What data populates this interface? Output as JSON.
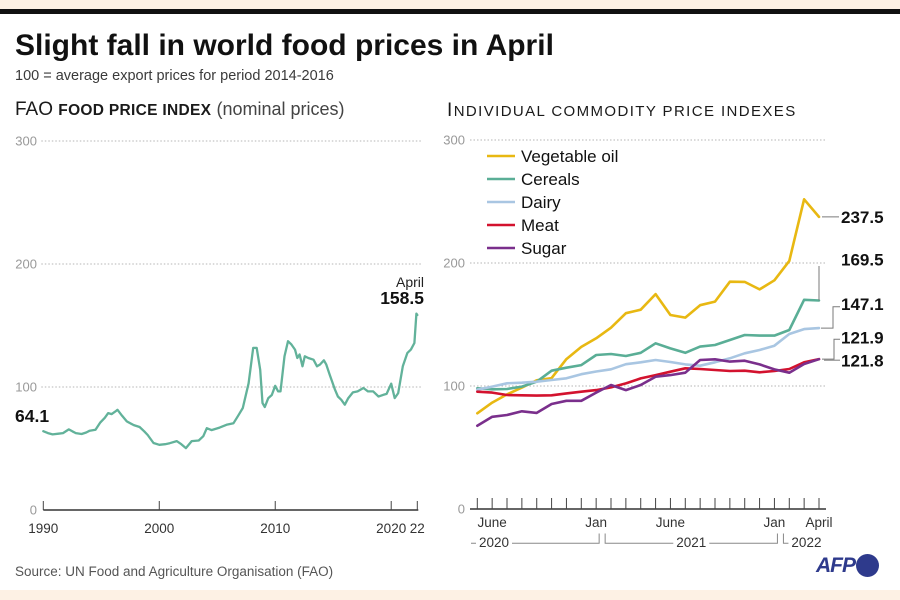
{
  "header": {
    "title": "Slight fall in world food prices in April",
    "subtitle": "100 = average export prices for period 2014-2016"
  },
  "left_panel": {
    "heading_prefix": "FAO",
    "heading_main": "FOOD PRICE INDEX",
    "heading_note": "(nominal prices)"
  },
  "right_panel": {
    "heading": "INDIVIDUAL COMMODITY PRICE INDEXES"
  },
  "footer": {
    "source": "Source: UN Food and Agriculture Organisation (FAO)",
    "logo_text": "AFP"
  },
  "colors": {
    "background": "#ffffff",
    "band": "#fdf1e4",
    "rule": "#111111",
    "logo": "#2e3a8c"
  },
  "chart_data": [
    {
      "type": "line",
      "title": "FAO FOOD PRICE INDEX (nominal prices)",
      "xlabel": "",
      "ylabel": "",
      "x_unit": "year",
      "xlim": [
        1990,
        2022.25
      ],
      "ylim": [
        0,
        300
      ],
      "yticks": [
        0,
        100,
        200,
        300
      ],
      "xticks": [
        {
          "value": 1990,
          "label": "1990"
        },
        {
          "value": 2000,
          "label": "2000"
        },
        {
          "value": 2010,
          "label": "2010"
        },
        {
          "value": 2020,
          "label": "2020"
        },
        {
          "value": 2022.25,
          "label": "22"
        }
      ],
      "grid": true,
      "series": [
        {
          "name": "FAO Food Price Index",
          "color": "#62b29a",
          "points": [
            [
              1990.0,
              64.1
            ],
            [
              1990.4,
              62.5
            ],
            [
              1990.8,
              61.5
            ],
            [
              1991.3,
              62.0
            ],
            [
              1991.7,
              62.5
            ],
            [
              1992.2,
              65.5
            ],
            [
              1992.5,
              64.0
            ],
            [
              1992.8,
              62.5
            ],
            [
              1993.3,
              61.8
            ],
            [
              1993.7,
              63.0
            ],
            [
              1994.0,
              64.5
            ],
            [
              1994.5,
              65.2
            ],
            [
              1994.9,
              71.0
            ],
            [
              1995.3,
              75.0
            ],
            [
              1995.6,
              78.8
            ],
            [
              1995.9,
              78.0
            ],
            [
              1996.2,
              80.0
            ],
            [
              1996.4,
              81.5
            ],
            [
              1996.8,
              76.5
            ],
            [
              1997.2,
              72.0
            ],
            [
              1997.5,
              70.5
            ],
            [
              1997.8,
              69.0
            ],
            [
              1998.3,
              67.5
            ],
            [
              1998.7,
              64.0
            ],
            [
              1999.0,
              61.0
            ],
            [
              1999.5,
              54.5
            ],
            [
              2000.0,
              53.0
            ],
            [
              2000.5,
              53.5
            ],
            [
              2000.9,
              54.3
            ],
            [
              2001.5,
              56.0
            ],
            [
              2001.9,
              53.5
            ],
            [
              2002.3,
              50.3
            ],
            [
              2002.8,
              56.0
            ],
            [
              2003.4,
              56.5
            ],
            [
              2003.8,
              60.0
            ],
            [
              2004.1,
              66.5
            ],
            [
              2004.5,
              65.0
            ],
            [
              2005.2,
              67.0
            ],
            [
              2005.8,
              69.3
            ],
            [
              2006.4,
              70.6
            ],
            [
              2006.8,
              76.6
            ],
            [
              2007.2,
              82.9
            ],
            [
              2007.7,
              103.0
            ],
            [
              2008.1,
              131.8
            ],
            [
              2008.4,
              131.8
            ],
            [
              2008.7,
              114.0
            ],
            [
              2008.9,
              87.0
            ],
            [
              2009.1,
              83.7
            ],
            [
              2009.4,
              91.0
            ],
            [
              2009.7,
              93.5
            ],
            [
              2010.0,
              101.0
            ],
            [
              2010.25,
              96.4
            ],
            [
              2010.45,
              96.4
            ],
            [
              2010.8,
              125.0
            ],
            [
              2011.1,
              137.2
            ],
            [
              2011.4,
              134.5
            ],
            [
              2011.7,
              130.4
            ],
            [
              2011.9,
              123.6
            ],
            [
              2012.1,
              126.4
            ],
            [
              2012.35,
              116.8
            ],
            [
              2012.55,
              125.0
            ],
            [
              2012.85,
              123.6
            ],
            [
              2013.3,
              122.2
            ],
            [
              2013.6,
              116.8
            ],
            [
              2013.85,
              118.2
            ],
            [
              2014.2,
              121.7
            ],
            [
              2014.4,
              118.2
            ],
            [
              2014.7,
              110.0
            ],
            [
              2015.15,
              97.8
            ],
            [
              2015.4,
              92.3
            ],
            [
              2015.7,
              89.6
            ],
            [
              2016.0,
              85.6
            ],
            [
              2016.3,
              91.0
            ],
            [
              2016.7,
              95.6
            ],
            [
              2017.1,
              96.4
            ],
            [
              2017.6,
              99.2
            ],
            [
              2018.0,
              96.4
            ],
            [
              2018.45,
              96.4
            ],
            [
              2018.9,
              92.3
            ],
            [
              2019.3,
              93.6
            ],
            [
              2019.6,
              94.4
            ],
            [
              2020.0,
              102.7
            ],
            [
              2020.3,
              91.0
            ],
            [
              2020.6,
              95.0
            ],
            [
              2021.0,
              116.8
            ],
            [
              2021.4,
              127.7
            ],
            [
              2021.7,
              130.4
            ],
            [
              2022.0,
              135.8
            ],
            [
              2022.17,
              159.7
            ],
            [
              2022.25,
              158.5
            ]
          ]
        }
      ],
      "annotations": [
        {
          "text": "64.1",
          "x": 1990,
          "y": 64.1
        },
        {
          "text": "April",
          "x": 2022.25,
          "y": 158.5
        },
        {
          "text": "158.5",
          "x": 2022.25,
          "y": 158.5
        }
      ]
    },
    {
      "type": "line",
      "title": "INDIVIDUAL COMMODITY PRICE INDEXES",
      "xlabel": "",
      "ylabel": "",
      "x": [
        "2020-05",
        "2020-06",
        "2020-07",
        "2020-08",
        "2020-09",
        "2020-10",
        "2020-11",
        "2020-12",
        "2021-01",
        "2021-02",
        "2021-03",
        "2021-04",
        "2021-05",
        "2021-06",
        "2021-07",
        "2021-08",
        "2021-09",
        "2021-10",
        "2021-11",
        "2021-12",
        "2022-01",
        "2022-02",
        "2022-03",
        "2022-04"
      ],
      "ylim": [
        0,
        300
      ],
      "yticks": [
        0,
        100,
        200,
        300
      ],
      "grid": true,
      "legend_position": "top-left",
      "xtick_labels": [
        {
          "month": "2020-06",
          "label": "June"
        },
        {
          "month": "2021-01",
          "label": "Jan"
        },
        {
          "month": "2021-06",
          "label": "June"
        },
        {
          "month": "2022-01",
          "label": "Jan"
        },
        {
          "month": "2022-04",
          "label": "April"
        }
      ],
      "year_groups": [
        {
          "label": "2020",
          "from": "2020-05",
          "to": "2020-12"
        },
        {
          "label": "2021",
          "from": "2021-01",
          "to": "2021-12"
        },
        {
          "label": "2022",
          "from": "2022-01",
          "to": "2022-04"
        }
      ],
      "series": [
        {
          "name": "Vegetable oil",
          "color": "#e8b812",
          "values": [
            77.8,
            86.5,
            93.2,
            98.7,
            104.6,
            106.4,
            121.9,
            131.8,
            138.8,
            147.4,
            159.2,
            162.0,
            174.7,
            157.7,
            155.6,
            165.7,
            168.6,
            184.8,
            184.6,
            178.5,
            185.9,
            201.7,
            251.8,
            237.5
          ]
        },
        {
          "name": "Cereals",
          "color": "#5aae96",
          "values": [
            98.1,
            97.3,
            97.6,
            99.5,
            103.5,
            112.4,
            114.9,
            117.0,
            125.2,
            126.0,
            124.4,
            127.0,
            134.7,
            130.6,
            127.0,
            132.0,
            133.3,
            137.4,
            141.5,
            141.0,
            141.0,
            145.5,
            170.1,
            169.5
          ]
        },
        {
          "name": "Dairy",
          "color": "#a9c6e2",
          "values": [
            97.0,
            99.5,
            102.2,
            102.7,
            103.5,
            104.9,
            106.3,
            109.6,
            111.8,
            113.6,
            117.7,
            119.3,
            121.1,
            119.5,
            117.6,
            116.5,
            119.3,
            122.5,
            126.6,
            129.3,
            132.8,
            142.3,
            146.3,
            147.1
          ]
        },
        {
          "name": "Meat",
          "color": "#d3122e",
          "values": [
            95.4,
            94.6,
            92.7,
            92.4,
            92.2,
            92.4,
            94.0,
            95.4,
            96.7,
            98.9,
            102.1,
            106.2,
            108.9,
            111.6,
            114.4,
            113.8,
            113.0,
            112.2,
            112.4,
            111.1,
            112.2,
            113.8,
            119.3,
            121.9
          ]
        },
        {
          "name": "Sugar",
          "color": "#7a2f8c",
          "values": [
            67.7,
            75.0,
            76.4,
            79.4,
            78.1,
            85.4,
            88.0,
            88.0,
            94.6,
            100.8,
            96.7,
            100.8,
            107.6,
            108.9,
            110.8,
            121.1,
            121.7,
            119.8,
            120.6,
            117.6,
            113.5,
            110.8,
            117.9,
            121.8
          ]
        }
      ],
      "end_labels": [
        {
          "series": "Vegetable oil",
          "text": "237.5"
        },
        {
          "series": "Cereals",
          "text": "169.5"
        },
        {
          "series": "Dairy",
          "text": "147.1"
        },
        {
          "series": "Meat",
          "text": "121.9"
        },
        {
          "series": "Sugar",
          "text": "121.8"
        }
      ]
    }
  ]
}
